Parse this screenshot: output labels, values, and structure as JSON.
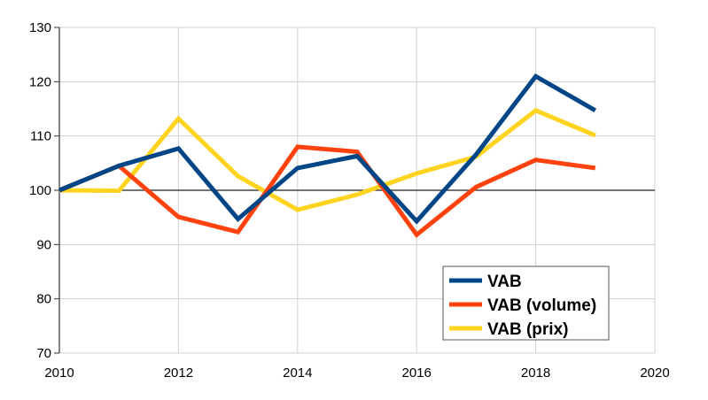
{
  "chart_data": {
    "type": "line",
    "title": "",
    "xlabel": "",
    "ylabel": "",
    "xlim": [
      2010,
      2020
    ],
    "ylim": [
      70,
      130
    ],
    "x_ticks": [
      2010,
      2012,
      2014,
      2016,
      2018,
      2020
    ],
    "y_ticks": [
      70,
      80,
      90,
      100,
      110,
      120,
      130
    ],
    "x_tick_labels": [
      "2010",
      "2012",
      "2014",
      "2016",
      "2018",
      "2020"
    ],
    "y_tick_labels": [
      "70",
      "80",
      "90",
      "100",
      "110",
      "120",
      "130"
    ],
    "grid": true,
    "reference_line": 100,
    "legend_position": "bottom-right",
    "x": [
      2010,
      2011,
      2012,
      2013,
      2014,
      2015,
      2016,
      2017,
      2018,
      2019
    ],
    "series": [
      {
        "name": "VAB",
        "color": "#004586",
        "values": [
          100,
          104.5,
          107.7,
          94.7,
          104.1,
          106.3,
          94.3,
          106.6,
          121.0,
          114.7
        ]
      },
      {
        "name": "VAB (volume)",
        "color": "#FF420E",
        "values": [
          100,
          104.5,
          95.1,
          92.3,
          108.0,
          107.1,
          91.8,
          100.6,
          105.6,
          104.1
        ]
      },
      {
        "name": "VAB (prix)",
        "color": "#FFD320",
        "values": [
          100,
          99.9,
          113.2,
          102.6,
          96.4,
          99.2,
          103.1,
          106.2,
          114.7,
          110.1
        ]
      }
    ]
  }
}
